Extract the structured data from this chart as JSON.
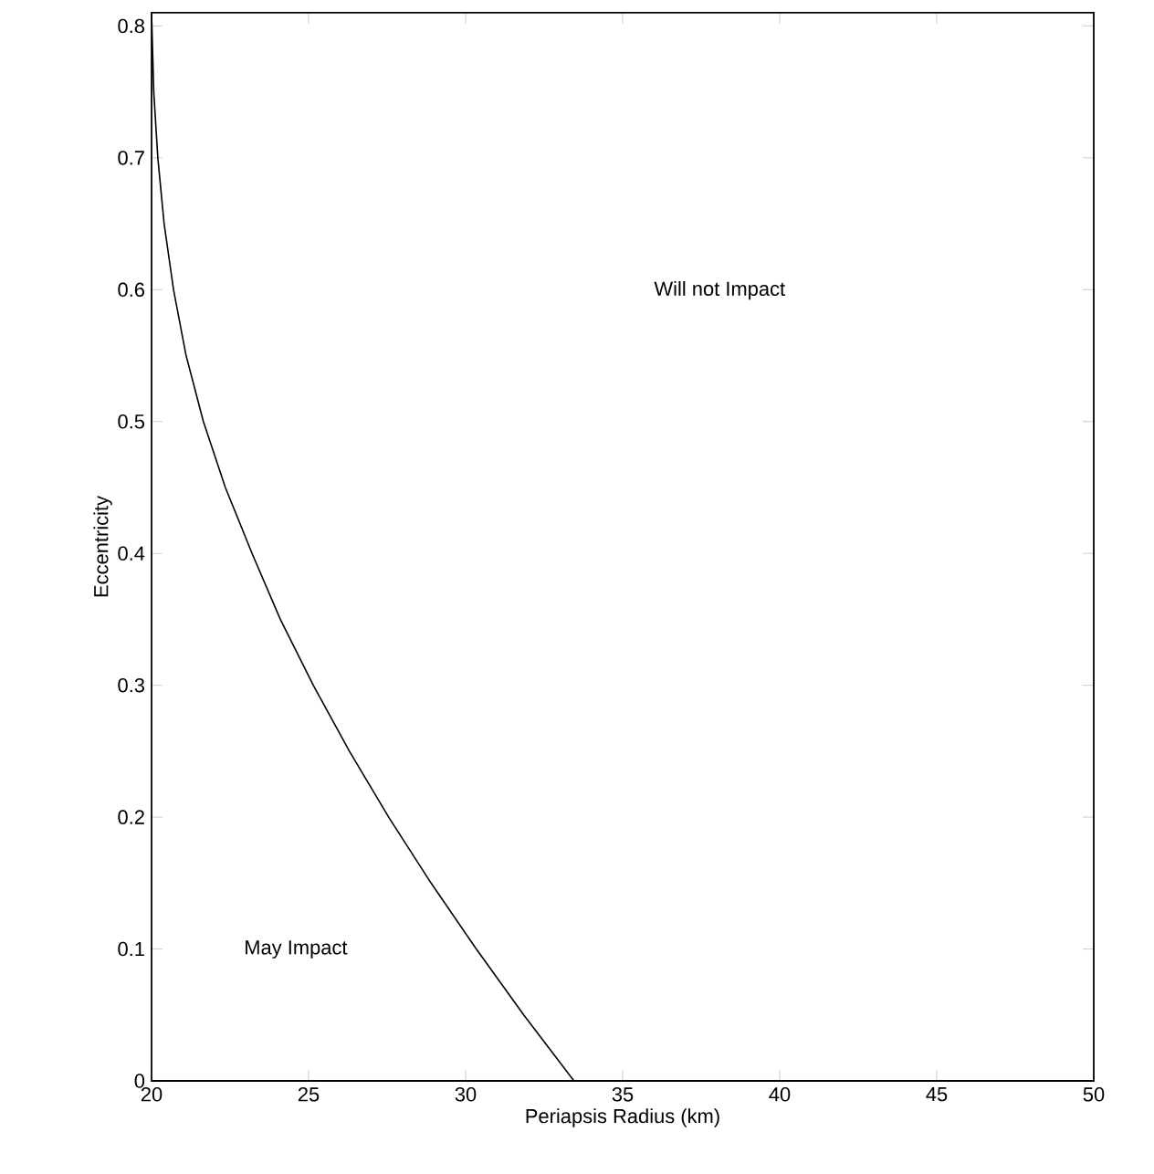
{
  "chart_data": {
    "type": "line",
    "xlabel": "Periapsis Radius (km)",
    "ylabel": "Eccentricity",
    "xlim": [
      20,
      50
    ],
    "ylim": [
      0,
      0.81
    ],
    "xticks": [
      20,
      25,
      30,
      35,
      40,
      45,
      50
    ],
    "yticks": [
      0,
      0.1,
      0.2,
      0.3,
      0.4,
      0.5,
      0.6,
      0.7,
      0.8
    ],
    "series": [
      {
        "color": "#000000",
        "x": [
          20.0,
          20.07,
          20.2,
          20.4,
          20.7,
          21.1,
          21.65,
          22.35,
          23.2,
          24.1,
          25.15,
          26.3,
          27.55,
          28.9,
          30.34,
          31.85,
          33.45
        ],
        "values": [
          0.81,
          0.75,
          0.7,
          0.65,
          0.6,
          0.55,
          0.5,
          0.45,
          0.4,
          0.35,
          0.3,
          0.25,
          0.2,
          0.15,
          0.1,
          0.05,
          0
        ]
      }
    ],
    "annotations": [
      "Will not Impact",
      "May Impact"
    ],
    "grid": false,
    "marker": "none",
    "line_style": "solid"
  }
}
